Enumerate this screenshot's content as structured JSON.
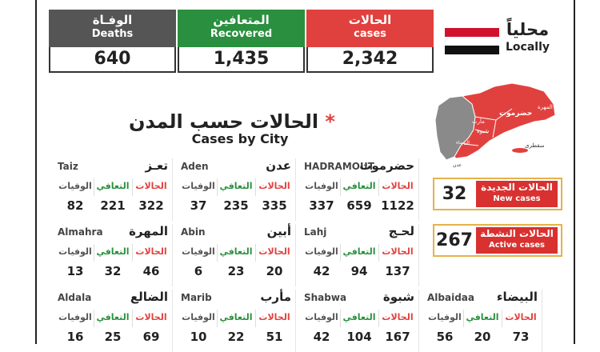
{
  "stats": {
    "deaths": {
      "ar": "الوفـاة",
      "en": "Deaths",
      "value": "640"
    },
    "recovered": {
      "ar": "المتعافين",
      "en": "Recovered",
      "value": "1,435"
    },
    "cases": {
      "ar": "الحالات",
      "en": "cases",
      "value": "2,342"
    }
  },
  "locally": {
    "ar": "محلياً",
    "en": "Locally"
  },
  "flag_colors": [
    "#d0112b",
    "#ffffff",
    "#111111"
  ],
  "section": {
    "title_ar": "الحالات حسب المدن",
    "star": "*",
    "title_en": "Cases by City"
  },
  "kpis": {
    "new": {
      "value": "32",
      "ar": "الحالات الجديدة",
      "en": "New cases"
    },
    "active": {
      "value": "267",
      "ar": "الحالات النشطة",
      "en": "Active cases"
    }
  },
  "column_labels": {
    "cases": "الحالات",
    "recovered": "التعافي",
    "deaths": "الوفيات"
  },
  "cities": [
    {
      "en": "HADRAMOUT",
      "ar": "حضرموت",
      "cases": "1122",
      "recovered": "659",
      "deaths": "337"
    },
    {
      "en": "Aden",
      "ar": "عدن",
      "cases": "335",
      "recovered": "235",
      "deaths": "37"
    },
    {
      "en": "Taiz",
      "ar": "تعـز",
      "cases": "322",
      "recovered": "221",
      "deaths": "82"
    },
    {
      "en": "Lahj",
      "ar": "لحـج",
      "cases": "137",
      "recovered": "94",
      "deaths": "42"
    },
    {
      "en": "Abin",
      "ar": "أبين",
      "cases": "20",
      "recovered": "23",
      "deaths": "6"
    },
    {
      "en": "Almahra",
      "ar": "المهرة",
      "cases": "46",
      "recovered": "32",
      "deaths": "13"
    },
    {
      "en": "Albaidaa",
      "ar": "البيضاء",
      "cases": "73",
      "recovered": "20",
      "deaths": "56"
    },
    {
      "en": "Shabwa",
      "ar": "شبوة",
      "cases": "167",
      "recovered": "104",
      "deaths": "42"
    },
    {
      "en": "Marib",
      "ar": "مأرب",
      "cases": "51",
      "recovered": "22",
      "deaths": "10"
    },
    {
      "en": "Aldala",
      "ar": "الضالع",
      "cases": "69",
      "recovered": "25",
      "deaths": "16"
    }
  ],
  "map": {
    "labels": [
      "المهرة",
      "حضرموت",
      "شبوة",
      "مأرب",
      "البيضاء",
      "سقطرى",
      "عدن"
    ],
    "accent": "#e1413e",
    "grey": "#8a8a8a"
  }
}
